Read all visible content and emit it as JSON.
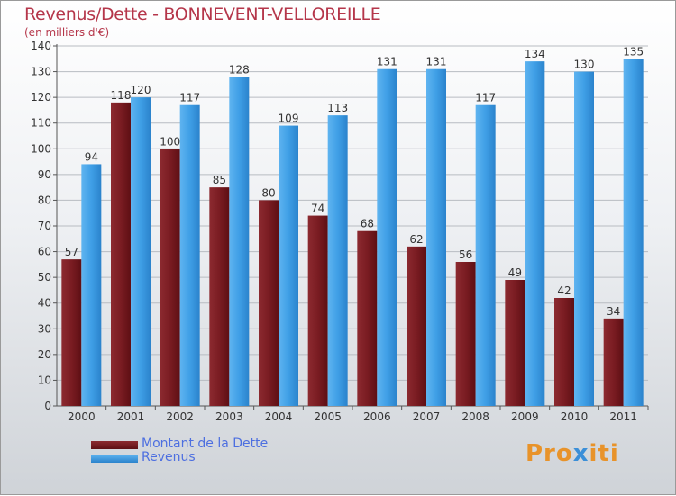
{
  "title": "Revenus/Dette - BONNEVENT-VELLOREILLE",
  "subtitle": "(en milliers d'€)",
  "legend": {
    "debt_label": "Montant de la Dette",
    "revenue_label": "Revenus"
  },
  "logo": {
    "text": "Proxiti"
  },
  "colors": {
    "debt": "#7a1c22",
    "revenue": "#3f9fe6",
    "title": "#b5364a",
    "legend_text": "#4d6fe0"
  },
  "chart_data": {
    "type": "bar",
    "title": "Revenus/Dette - BONNEVENT-VELLOREILLE",
    "subtitle": "(en milliers d'€)",
    "categories": [
      "2000",
      "2001",
      "2002",
      "2003",
      "2004",
      "2005",
      "2006",
      "2007",
      "2008",
      "2009",
      "2010",
      "2011"
    ],
    "series": [
      {
        "name": "Montant de la Dette",
        "values": [
          57,
          118,
          100,
          85,
          80,
          74,
          68,
          62,
          56,
          49,
          42,
          34
        ]
      },
      {
        "name": "Revenus",
        "values": [
          94,
          120,
          117,
          128,
          109,
          113,
          131,
          131,
          117,
          134,
          130,
          135
        ]
      }
    ],
    "ylim": [
      0,
      140
    ],
    "yticks": [
      0,
      10,
      20,
      30,
      40,
      50,
      60,
      70,
      80,
      90,
      100,
      110,
      120,
      130,
      140
    ],
    "grid": true,
    "legend_position": "bottom-left"
  }
}
